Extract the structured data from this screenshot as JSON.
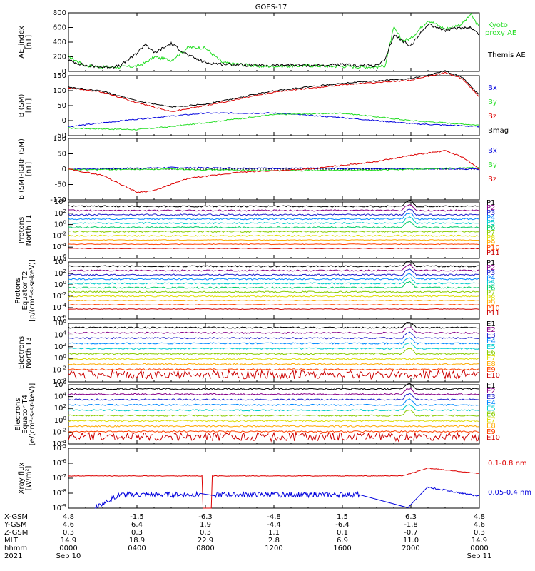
{
  "title": "GOES-17",
  "colors": {
    "black": "#000000",
    "red": "#dd0000",
    "green": "#22dd22",
    "blue": "#0000dd",
    "ch": [
      "#000000",
      "#880088",
      "#2222cc",
      "#0088ff",
      "#00cccc",
      "#00cc66",
      "#88cc00",
      "#dddd00",
      "#ffaa00",
      "#ff4400",
      "#cc0000"
    ]
  },
  "footer": {
    "rows": [
      {
        "label": "X-GSM",
        "values": [
          "4.8",
          "-1.5",
          "-6.3",
          "-4.8",
          "1.5",
          "6.3",
          "4.8"
        ]
      },
      {
        "label": "Y-GSM",
        "values": [
          "4.6",
          "6.4",
          "1.9",
          "-4.4",
          "-6.4",
          "-1.8",
          "4.6"
        ]
      },
      {
        "label": "Z-GSM",
        "values": [
          "0.3",
          "0.3",
          "0.3",
          "1.1",
          "0.1",
          "-0.7",
          "0.3"
        ]
      },
      {
        "label": "MLT",
        "values": [
          "14.9",
          "18.9",
          "22.9",
          "2.8",
          "6.9",
          "11.0",
          "14.9"
        ]
      },
      {
        "label": "hhmm",
        "values": [
          "0000",
          "0400",
          "0800",
          "1200",
          "1600",
          "2000",
          "0000"
        ]
      },
      {
        "label": "2021",
        "values": [
          "Sep 10",
          "",
          "",
          "",
          "",
          "",
          "Sep 11"
        ]
      }
    ]
  },
  "chart_data": [
    {
      "type": "line",
      "panel": "AE",
      "ylabel": [
        "AE_index",
        "[nT]"
      ],
      "ylim": [
        0,
        800
      ],
      "yticks": [
        "0",
        "200",
        "400",
        "600",
        "800"
      ],
      "series": [
        {
          "name": "Kyoto proxy AE",
          "color": "#22dd22",
          "x": [
            0,
            1,
            2,
            3,
            4,
            4.5,
            5,
            6,
            7,
            8,
            9,
            10,
            11,
            12,
            13,
            14,
            15,
            16,
            17,
            18,
            18.5,
            19,
            19.5,
            20,
            21,
            22,
            23,
            23.5,
            24
          ],
          "y": [
            200,
            80,
            60,
            60,
            70,
            120,
            200,
            150,
            330,
            320,
            120,
            100,
            70,
            70,
            70,
            80,
            70,
            70,
            60,
            60,
            80,
            600,
            420,
            450,
            700,
            580,
            650,
            780,
            600
          ]
        },
        {
          "name": "Themis AE",
          "color": "#000000",
          "x": [
            0,
            1,
            2,
            3,
            4,
            4.5,
            5,
            6,
            7,
            8,
            9,
            10,
            11,
            12,
            13,
            14,
            15,
            16,
            17,
            18,
            18.5,
            19,
            19.5,
            20,
            21,
            22,
            23,
            23.5,
            24
          ],
          "y": [
            150,
            80,
            60,
            70,
            250,
            380,
            250,
            380,
            220,
            120,
            100,
            90,
            80,
            80,
            90,
            80,
            80,
            90,
            80,
            80,
            150,
            500,
            420,
            350,
            650,
            560,
            600,
            600,
            500
          ]
        }
      ]
    },
    {
      "type": "line",
      "panel": "B_SM",
      "ylabel": [
        "B (SM)",
        "[nT]"
      ],
      "ylim": [
        -50,
        150
      ],
      "yticks": [
        "-50",
        "0",
        "50",
        "100",
        "150"
      ],
      "series": [
        {
          "name": "Bx",
          "color": "#0000dd",
          "x": [
            0,
            4,
            8,
            12,
            16,
            20,
            24
          ],
          "y": [
            -20,
            5,
            25,
            25,
            10,
            -10,
            -20
          ]
        },
        {
          "name": "By",
          "color": "#22dd22",
          "x": [
            0,
            4,
            6,
            12,
            16,
            20,
            24
          ],
          "y": [
            -25,
            -30,
            -20,
            20,
            25,
            0,
            -15
          ]
        },
        {
          "name": "Bz",
          "color": "#dd0000",
          "x": [
            0,
            2,
            4,
            6,
            8,
            12,
            16,
            20,
            22,
            23,
            24
          ],
          "y": [
            110,
            95,
            60,
            30,
            50,
            95,
            120,
            135,
            160,
            140,
            80
          ]
        },
        {
          "name": "Bmag",
          "color": "#000000",
          "x": [
            0,
            2,
            4,
            6,
            8,
            12,
            16,
            20,
            22,
            23,
            24
          ],
          "y": [
            112,
            98,
            65,
            45,
            55,
            100,
            125,
            140,
            165,
            145,
            85
          ]
        }
      ]
    },
    {
      "type": "line",
      "panel": "dB",
      "ylabel": [
        "B (SM)-IGRF (SM)",
        "[nT]"
      ],
      "ylim": [
        -100,
        100
      ],
      "yticks": [
        "-100",
        "-50",
        "0",
        "50",
        "100"
      ],
      "series": [
        {
          "name": "Bx",
          "color": "#0000dd",
          "x": [
            0,
            6,
            12,
            18,
            24
          ],
          "y": [
            0,
            5,
            3,
            2,
            0
          ]
        },
        {
          "name": "By",
          "color": "#22dd22",
          "x": [
            0,
            6,
            12,
            18,
            24
          ],
          "y": [
            -2,
            0,
            -5,
            -3,
            5
          ]
        },
        {
          "name": "Bz",
          "color": "#dd0000",
          "x": [
            0,
            2,
            4,
            5,
            7,
            10,
            14,
            18,
            20,
            22,
            23,
            24
          ],
          "y": [
            0,
            -20,
            -75,
            -70,
            -30,
            -10,
            0,
            25,
            45,
            60,
            40,
            0
          ]
        }
      ]
    },
    {
      "type": "line",
      "panel": "protons_north_T1",
      "scale": "log",
      "ylabel": [
        "Protons",
        "North T1"
      ],
      "yticks": [
        "10^-6",
        "10^-4",
        "10^-2",
        "10^0",
        "10^2",
        "10^4"
      ],
      "series": [
        "P1",
        "P2",
        "P3",
        "P4",
        "P5",
        "P6",
        "P7",
        "P8",
        "P9",
        "P10",
        "P11"
      ]
    },
    {
      "type": "line",
      "panel": "protons_equator_T2",
      "scale": "log",
      "ylabel": [
        "Protons",
        "Equator T2",
        "[p/(cm²-s-sr-keV)]"
      ],
      "yticks": [
        "10^-6",
        "10^-4",
        "10^-2",
        "10^0",
        "10^2",
        "10^4"
      ],
      "series": [
        "P1",
        "P2",
        "P3",
        "P4",
        "P5",
        "P6",
        "P7",
        "P8",
        "P9",
        "P10",
        "P11"
      ]
    },
    {
      "type": "line",
      "panel": "electrons_north_T3",
      "scale": "log",
      "ylabel": [
        "Electrons",
        "North T3"
      ],
      "yticks": [
        "10^-4",
        "10^-2",
        "10^0",
        "10^2",
        "10^4",
        "10^6"
      ],
      "series": [
        "E1",
        "E2",
        "E3",
        "E4",
        "E5",
        "E6",
        "E7",
        "E8",
        "E9",
        "E10"
      ]
    },
    {
      "type": "line",
      "panel": "electrons_equator_T4",
      "scale": "log",
      "ylabel": [
        "Electrons",
        "Equator T4",
        "[e/(cm²-s-sr-keV)]"
      ],
      "yticks": [
        "10^-4",
        "10^-2",
        "10^0",
        "10^2",
        "10^4",
        "10^6"
      ],
      "series": [
        "E1",
        "E2",
        "E3",
        "E4",
        "E5",
        "E6",
        "E7",
        "E8",
        "E9",
        "E10"
      ]
    },
    {
      "type": "line",
      "panel": "xray",
      "scale": "log",
      "ylabel": [
        "Xray flux",
        "[W/m²]"
      ],
      "yticks": [
        "10^-9",
        "10^-8",
        "10^-7",
        "10^-6",
        "10^-5"
      ],
      "series": [
        {
          "name": "0.1-0.8 nm",
          "color": "#dd0000"
        },
        {
          "name": "0.05-0.4 nm",
          "color": "#0000dd"
        }
      ]
    }
  ]
}
